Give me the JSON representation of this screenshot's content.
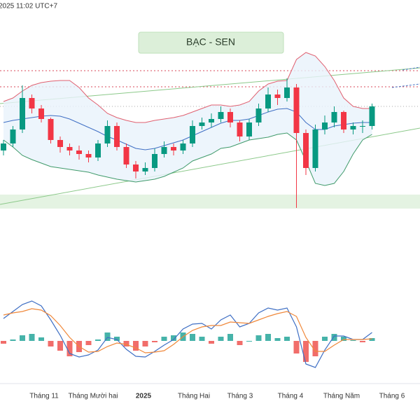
{
  "header": {
    "timestamp": "2025 11:02 UTC+7"
  },
  "chart_data": [
    {
      "type": "candlestick",
      "title": "BẠC - SEN",
      "ylim": [
        0,
        240
      ],
      "open": [
        85,
        95,
        115,
        160,
        145,
        130,
        100,
        90,
        85,
        80,
        75,
        95,
        120,
        90,
        65,
        55,
        60,
        80,
        90,
        85,
        95,
        120,
        125,
        130,
        140,
        125,
        105,
        125,
        145,
        165,
        160,
        175,
        110,
        60,
        115,
        125,
        140,
        115,
        120,
        120
      ],
      "high": [
        100,
        120,
        178,
        165,
        150,
        132,
        105,
        95,
        92,
        85,
        100,
        128,
        125,
        95,
        70,
        68,
        88,
        98,
        95,
        100,
        128,
        132,
        138,
        148,
        145,
        128,
        130,
        152,
        175,
        172,
        188,
        180,
        115,
        122,
        135,
        148,
        142,
        125,
        128,
        152
      ],
      "low": [
        78,
        90,
        110,
        138,
        125,
        95,
        82,
        78,
        72,
        68,
        70,
        90,
        85,
        60,
        45,
        50,
        55,
        75,
        78,
        80,
        90,
        115,
        118,
        125,
        118,
        98,
        100,
        120,
        140,
        150,
        155,
        3,
        50,
        55,
        108,
        118,
        110,
        108,
        110,
        115
      ],
      "close": [
        95,
        115,
        160,
        145,
        130,
        100,
        90,
        85,
        80,
        75,
        95,
        120,
        90,
        65,
        55,
        60,
        80,
        90,
        85,
        95,
        120,
        125,
        130,
        140,
        125,
        105,
        125,
        145,
        165,
        160,
        175,
        110,
        60,
        115,
        125,
        140,
        115,
        120,
        120,
        148
      ],
      "up_color": "#089981",
      "down_color": "#f23645",
      "series": [
        {
          "name": "BB Upper",
          "color": "#e06070",
          "values": [
            155,
            160,
            170,
            178,
            182,
            184,
            185,
            185,
            175,
            160,
            150,
            138,
            132,
            128,
            125,
            125,
            128,
            130,
            132,
            135,
            140,
            145,
            150,
            150,
            148,
            150,
            155,
            170,
            180,
            184,
            185,
            215,
            225,
            220,
            205,
            185,
            160,
            148,
            145,
            145
          ]
        },
        {
          "name": "BB Basis",
          "color": "#3f6fc4",
          "values": [
            125,
            128,
            130,
            132,
            134,
            135,
            134,
            130,
            124,
            118,
            112,
            105,
            100,
            94,
            88,
            86,
            88,
            92,
            96,
            100,
            106,
            112,
            118,
            124,
            128,
            128,
            130,
            135,
            140,
            144,
            145,
            140,
            125,
            115,
            115,
            120,
            122,
            124,
            125,
            125
          ]
        },
        {
          "name": "BB Lower",
          "color": "#3f9a6a",
          "values": [
            100,
            90,
            78,
            72,
            67,
            62,
            60,
            58,
            56,
            54,
            50,
            47,
            44,
            42,
            40,
            42,
            44,
            48,
            54,
            60,
            70,
            75,
            80,
            88,
            90,
            95,
            100,
            102,
            104,
            108,
            110,
            100,
            70,
            38,
            35,
            38,
            55,
            80,
            100,
            108
          ]
        }
      ]
    },
    {
      "type": "macd",
      "ylim": [
        -60,
        60
      ],
      "series": [
        {
          "name": "MACD",
          "color": "#3f6fc4",
          "values": [
            32,
            42,
            52,
            57,
            50,
            30,
            8,
            -18,
            -23,
            -20,
            -13,
            5,
            2,
            -12,
            -22,
            -23,
            -15,
            -6,
            2,
            17,
            24,
            25,
            17,
            30,
            37,
            20,
            25,
            40,
            47,
            44,
            47,
            20,
            -33,
            -38,
            -13,
            7,
            7,
            2,
            2,
            12
          ]
        },
        {
          "name": "Signal",
          "color": "#f0883a",
          "values": [
            37,
            40,
            42,
            46,
            44,
            36,
            22,
            5,
            -8,
            -16,
            -15,
            -8,
            -3,
            -5,
            -10,
            -17,
            -16,
            -14,
            -5,
            6,
            15,
            20,
            22,
            22,
            27,
            26,
            25,
            30,
            35,
            39,
            42,
            35,
            5,
            -15,
            -15,
            -6,
            2,
            2,
            2,
            3
          ]
        }
      ],
      "histogram": [
        -4,
        2,
        8,
        10,
        5,
        -8,
        -14,
        -22,
        -16,
        -6,
        2,
        12,
        6,
        -8,
        -14,
        -8,
        -2,
        6,
        8,
        12,
        10,
        6,
        -4,
        6,
        10,
        -6,
        0,
        8,
        10,
        4,
        6,
        -18,
        -30,
        -22,
        6,
        10,
        6,
        1,
        -2,
        4
      ],
      "up_color": "#26a69a",
      "down_color": "#ef5350",
      "x_labels": [
        "Tháng 11",
        "Tháng Mười hai",
        "2025",
        "Tháng Hai",
        "Tháng 3",
        "Tháng 4",
        "Tháng Năm",
        "Tháng 6"
      ]
    }
  ]
}
